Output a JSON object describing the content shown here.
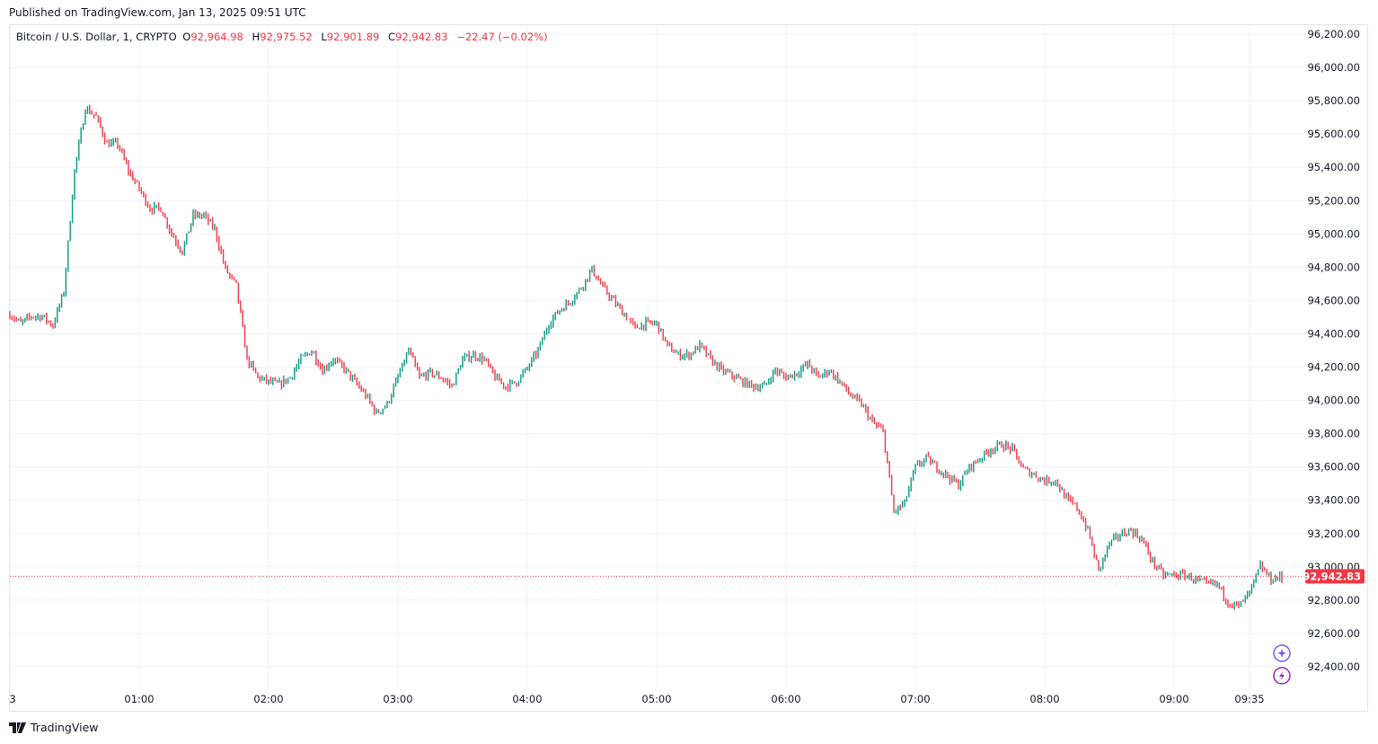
{
  "published": "Published on TradingView.com, Jan 13, 2025 09:51 UTC",
  "legend": {
    "symbol": "Bitcoin / U.S. Dollar, 1, CRYPTO",
    "o_label": "O",
    "o": "92,964.98",
    "h_label": "H",
    "h": "92,975.52",
    "l_label": "L",
    "l": "92,901.89",
    "c_label": "C",
    "c": "92,942.83",
    "change": "−22.47 (−0.02%)"
  },
  "current_price_label": "92,942.83",
  "footer": {
    "brand": "TradingView"
  },
  "colors": {
    "up": "#089981",
    "down": "#f23645",
    "grid": "#f0f3fa",
    "icons": "#9c27b0"
  },
  "icons": [
    "sparkle-icon",
    "lightning-icon"
  ],
  "chart_data": {
    "type": "candlestick",
    "title": "Bitcoin / U.S. Dollar, 1, CRYPTO",
    "interval_minutes": 1,
    "ylim": [
      92300,
      96300
    ],
    "yticks": [
      "96,200.00",
      "96,000.00",
      "95,800.00",
      "95,600.00",
      "95,400.00",
      "95,200.00",
      "95,000.00",
      "94,800.00",
      "94,600.00",
      "94,400.00",
      "94,200.00",
      "94,000.00",
      "93,800.00",
      "93,600.00",
      "93,400.00",
      "93,200.00",
      "93,000.00",
      "92,800.00",
      "92,600.00",
      "92,400.00"
    ],
    "ytick_values": [
      96200,
      96000,
      95800,
      95600,
      95400,
      95200,
      95000,
      94800,
      94600,
      94400,
      94200,
      94000,
      93800,
      93600,
      93400,
      93200,
      93000,
      92800,
      92600,
      92400
    ],
    "xticks": [
      {
        "label": "3",
        "minute": 0
      },
      {
        "label": "01:00",
        "minute": 60
      },
      {
        "label": "02:00",
        "minute": 120
      },
      {
        "label": "03:00",
        "minute": 180
      },
      {
        "label": "04:00",
        "minute": 240
      },
      {
        "label": "05:00",
        "minute": 300
      },
      {
        "label": "06:00",
        "minute": 360
      },
      {
        "label": "07:00",
        "minute": 420
      },
      {
        "label": "08:00",
        "minute": 480
      },
      {
        "label": "09:00",
        "minute": 540
      },
      {
        "label": "09:35",
        "minute": 575
      }
    ],
    "close_every_5_min": [
      94516,
      94462,
      94505,
      94505,
      94451,
      94651,
      95380,
      95757,
      95703,
      95541,
      95541,
      95380,
      95272,
      95153,
      95153,
      95002,
      94894,
      95110,
      95110,
      95029,
      94786,
      94689,
      94246,
      94138,
      94111,
      94095,
      94138,
      94246,
      94300,
      94181,
      94246,
      94192,
      94111,
      94030,
      93922,
      93976,
      94138,
      94300,
      94138,
      94165,
      94138,
      94084,
      94246,
      94273,
      94246,
      94138,
      94084,
      94111,
      94192,
      94300,
      94462,
      94543,
      94597,
      94678,
      94786,
      94678,
      94597,
      94516,
      94435,
      94462,
      94462,
      94327,
      94273,
      94273,
      94327,
      94246,
      94181,
      94149,
      94111,
      94084,
      94084,
      94181,
      94138,
      94165,
      94219,
      94138,
      94181,
      94111,
      94030,
      93976,
      93868,
      93814,
      93328,
      93382,
      93598,
      93652,
      93598,
      93544,
      93490,
      93598,
      93652,
      93706,
      93733,
      93706,
      93587,
      93555,
      93517,
      93517,
      93409,
      93355,
      93220,
      92977,
      93139,
      93193,
      93220,
      93166,
      93031,
      92950,
      92950,
      92950,
      92923,
      92896,
      92896,
      92788,
      92761,
      92842,
      93004,
      92923,
      92943
    ],
    "last_candle": {
      "open": 92964.98,
      "high": 92975.52,
      "low": 92901.89,
      "close": 92942.83
    }
  }
}
